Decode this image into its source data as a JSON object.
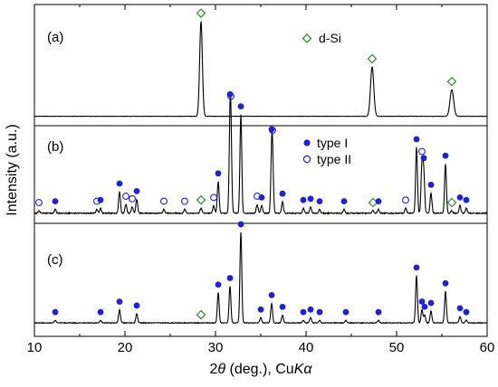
{
  "chart_data": {
    "type": "line",
    "xlabel_main": "2",
    "xlabel_theta": "θ",
    "xlabel_rest": " (deg.), Cu",
    "xlabel_K": "K",
    "xlabel_alpha": "α",
    "ylabel": "Intensity (a.u.)",
    "xlim": [
      10,
      60
    ],
    "xticks": [
      10,
      20,
      30,
      40,
      50,
      60
    ],
    "ytick_labels": false,
    "grid": false,
    "colors": {
      "line": "#000000",
      "type_I": "#1f1fdd",
      "type_II": "#1f1fdd",
      "d_Si": "#2e8b2e"
    },
    "legend": [
      {
        "label": "d-Si",
        "marker": "open-diamond",
        "panel": "a"
      },
      {
        "label": "type I",
        "marker": "filled-circle",
        "panel": "b"
      },
      {
        "label": "type II",
        "marker": "open-circle",
        "panel": "b"
      }
    ],
    "panels": [
      {
        "label": "(a)",
        "baseline": 0.1,
        "noise": 0.02,
        "peaks": [
          {
            "x": 28.4,
            "h": 7.5,
            "w": 0.15,
            "m": "d"
          },
          {
            "x": 47.3,
            "h": 3.9,
            "w": 0.18,
            "m": "d"
          },
          {
            "x": 56.1,
            "h": 2.1,
            "w": 0.2,
            "m": "d"
          }
        ]
      },
      {
        "label": "(b)",
        "baseline": 0.3,
        "noise": 0.08,
        "peaks": [
          {
            "x": 10.5,
            "h": 0.2,
            "w": 0.1,
            "m": "o"
          },
          {
            "x": 12.3,
            "h": 0.3,
            "w": 0.1,
            "m": "f"
          },
          {
            "x": 16.9,
            "h": 0.3,
            "w": 0.1,
            "m": "o"
          },
          {
            "x": 17.3,
            "h": 0.4,
            "w": 0.1,
            "m": "f"
          },
          {
            "x": 19.4,
            "h": 1.7,
            "w": 0.1,
            "m": "f"
          },
          {
            "x": 20.1,
            "h": 0.7,
            "w": 0.1,
            "m": "o"
          },
          {
            "x": 20.8,
            "h": 0.5,
            "w": 0.1,
            "m": "o"
          },
          {
            "x": 21.3,
            "h": 1.1,
            "w": 0.1,
            "m": "f"
          },
          {
            "x": 24.3,
            "h": 0.3,
            "w": 0.1,
            "m": "o"
          },
          {
            "x": 26.6,
            "h": 0.3,
            "w": 0.1,
            "m": "o"
          },
          {
            "x": 28.4,
            "h": 0.4,
            "w": 0.1,
            "m": "d"
          },
          {
            "x": 29.8,
            "h": 0.6,
            "w": 0.1,
            "m": "o"
          },
          {
            "x": 30.3,
            "h": 2.5,
            "w": 0.1,
            "m": "f"
          },
          {
            "x": 31.6,
            "h": 5.6,
            "w": 0.1,
            "m": "f"
          },
          {
            "x": 31.7,
            "h": 5.2,
            "w": 0.1,
            "m": "o"
          },
          {
            "x": 32.8,
            "h": 7.8,
            "w": 0.1,
            "m": "f"
          },
          {
            "x": 34.6,
            "h": 0.7,
            "w": 0.1,
            "m": "o"
          },
          {
            "x": 35.1,
            "h": 0.6,
            "w": 0.1,
            "m": "f"
          },
          {
            "x": 36.2,
            "h": 3.8,
            "w": 0.1,
            "m": "f"
          },
          {
            "x": 36.3,
            "h": 3.6,
            "w": 0.1,
            "m": "o"
          },
          {
            "x": 37.4,
            "h": 0.9,
            "w": 0.1,
            "m": "f"
          },
          {
            "x": 39.7,
            "h": 0.4,
            "w": 0.1,
            "m": "f"
          },
          {
            "x": 40.5,
            "h": 0.5,
            "w": 0.1,
            "m": "f"
          },
          {
            "x": 41.5,
            "h": 0.3,
            "w": 0.1,
            "m": "f"
          },
          {
            "x": 44.2,
            "h": 0.3,
            "w": 0.1,
            "m": "f"
          },
          {
            "x": 47.4,
            "h": 0.2,
            "w": 0.1,
            "m": "d"
          },
          {
            "x": 48.0,
            "h": 0.3,
            "w": 0.1,
            "m": "f"
          },
          {
            "x": 51.0,
            "h": 0.4,
            "w": 0.1,
            "m": "o"
          },
          {
            "x": 52.2,
            "h": 5.2,
            "w": 0.1,
            "m": "f"
          },
          {
            "x": 52.8,
            "h": 3.8,
            "w": 0.1,
            "m": "o"
          },
          {
            "x": 53.0,
            "h": 3.2,
            "w": 0.1,
            "m": "f"
          },
          {
            "x": 53.8,
            "h": 1.6,
            "w": 0.1,
            "m": "f"
          },
          {
            "x": 55.4,
            "h": 3.9,
            "w": 0.1,
            "m": "f"
          },
          {
            "x": 56.1,
            "h": 0.2,
            "w": 0.1,
            "m": "d"
          },
          {
            "x": 57.0,
            "h": 0.6,
            "w": 0.1,
            "m": "f"
          },
          {
            "x": 57.7,
            "h": 0.4,
            "w": 0.1,
            "m": "f"
          }
        ]
      },
      {
        "label": "(c)",
        "baseline": 0.2,
        "noise": 0.05,
        "peaks": [
          {
            "x": 12.3,
            "h": 0.2,
            "w": 0.1,
            "m": "f"
          },
          {
            "x": 17.3,
            "h": 0.2,
            "w": 0.1,
            "m": "f"
          },
          {
            "x": 19.4,
            "h": 1.0,
            "w": 0.1,
            "m": "f"
          },
          {
            "x": 21.3,
            "h": 0.7,
            "w": 0.1,
            "m": "f"
          },
          {
            "x": 28.4,
            "h": 0.0,
            "w": 0.1,
            "m": "d"
          },
          {
            "x": 30.3,
            "h": 2.3,
            "w": 0.1,
            "m": "f"
          },
          {
            "x": 31.6,
            "h": 2.8,
            "w": 0.1,
            "m": "f"
          },
          {
            "x": 32.8,
            "h": 6.9,
            "w": 0.1,
            "m": "f"
          },
          {
            "x": 35.0,
            "h": 0.4,
            "w": 0.1,
            "m": "f"
          },
          {
            "x": 36.2,
            "h": 1.5,
            "w": 0.1,
            "m": "f"
          },
          {
            "x": 37.4,
            "h": 0.6,
            "w": 0.1,
            "m": "f"
          },
          {
            "x": 39.7,
            "h": 0.2,
            "w": 0.1,
            "m": "f"
          },
          {
            "x": 40.5,
            "h": 0.4,
            "w": 0.1,
            "m": "f"
          },
          {
            "x": 41.5,
            "h": 0.2,
            "w": 0.1,
            "m": "f"
          },
          {
            "x": 44.4,
            "h": 0.2,
            "w": 0.1,
            "m": "f"
          },
          {
            "x": 48.0,
            "h": 0.2,
            "w": 0.1,
            "m": "f"
          },
          {
            "x": 52.2,
            "h": 3.6,
            "w": 0.1,
            "m": "f"
          },
          {
            "x": 52.8,
            "h": 1.0,
            "w": 0.1,
            "m": "f"
          },
          {
            "x": 53.1,
            "h": 0.6,
            "w": 0.1,
            "m": "f"
          },
          {
            "x": 53.8,
            "h": 0.9,
            "w": 0.1,
            "m": "f"
          },
          {
            "x": 55.4,
            "h": 2.4,
            "w": 0.1,
            "m": "f"
          },
          {
            "x": 57.0,
            "h": 0.5,
            "w": 0.1,
            "m": "f"
          },
          {
            "x": 57.7,
            "h": 0.2,
            "w": 0.1,
            "m": "f"
          }
        ]
      }
    ]
  }
}
